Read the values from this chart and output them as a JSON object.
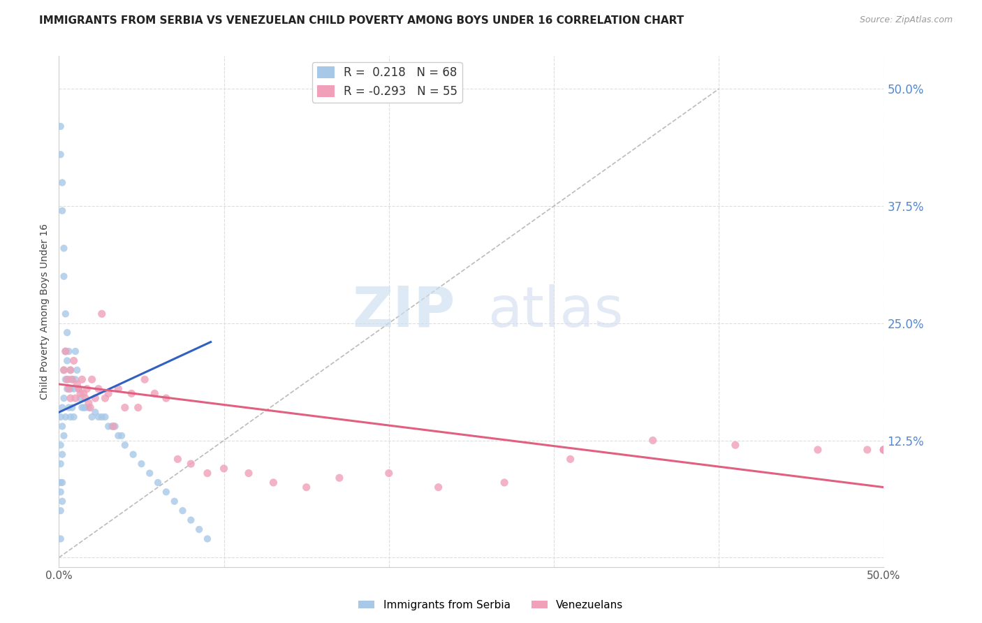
{
  "title": "IMMIGRANTS FROM SERBIA VS VENEZUELAN CHILD POVERTY AMONG BOYS UNDER 16 CORRELATION CHART",
  "source": "Source: ZipAtlas.com",
  "ylabel": "Child Poverty Among Boys Under 16",
  "yticks": [
    0.0,
    0.125,
    0.25,
    0.375,
    0.5
  ],
  "ytick_labels_right": [
    "",
    "12.5%",
    "25.0%",
    "37.5%",
    "50.0%"
  ],
  "xtick_vals": [
    0.0,
    0.5
  ],
  "xtick_labels": [
    "0.0%",
    "50.0%"
  ],
  "xmin": 0.0,
  "xmax": 0.5,
  "ymin": -0.01,
  "ymax": 0.535,
  "legend1_r": "0.218",
  "legend1_n": "68",
  "legend2_r": "-0.293",
  "legend2_n": "55",
  "serbia_color": "#a8c8e8",
  "venezuela_color": "#f0a0b8",
  "serbia_line_color": "#3060c0",
  "venezuela_line_color": "#e06080",
  "diagonal_color": "#bbbbbb",
  "background_color": "#ffffff",
  "grid_color": "#dddddd",
  "serbia_x": [
    0.001,
    0.001,
    0.001,
    0.001,
    0.001,
    0.001,
    0.001,
    0.001,
    0.001,
    0.002,
    0.002,
    0.002,
    0.002,
    0.002,
    0.002,
    0.002,
    0.003,
    0.003,
    0.003,
    0.003,
    0.003,
    0.004,
    0.004,
    0.004,
    0.004,
    0.005,
    0.005,
    0.005,
    0.006,
    0.006,
    0.006,
    0.007,
    0.007,
    0.007,
    0.008,
    0.008,
    0.009,
    0.009,
    0.01,
    0.01,
    0.011,
    0.012,
    0.013,
    0.014,
    0.015,
    0.016,
    0.018,
    0.02,
    0.022,
    0.024,
    0.026,
    0.028,
    0.03,
    0.032,
    0.034,
    0.036,
    0.038,
    0.04,
    0.045,
    0.05,
    0.055,
    0.06,
    0.065,
    0.07,
    0.075,
    0.08,
    0.085,
    0.09
  ],
  "serbia_y": [
    0.46,
    0.43,
    0.15,
    0.12,
    0.1,
    0.08,
    0.07,
    0.05,
    0.02,
    0.4,
    0.37,
    0.16,
    0.14,
    0.11,
    0.08,
    0.06,
    0.33,
    0.3,
    0.2,
    0.17,
    0.13,
    0.26,
    0.22,
    0.19,
    0.15,
    0.24,
    0.21,
    0.18,
    0.22,
    0.19,
    0.16,
    0.2,
    0.18,
    0.15,
    0.19,
    0.16,
    0.18,
    0.15,
    0.22,
    0.19,
    0.2,
    0.18,
    0.17,
    0.16,
    0.16,
    0.16,
    0.16,
    0.15,
    0.155,
    0.15,
    0.15,
    0.15,
    0.14,
    0.14,
    0.14,
    0.13,
    0.13,
    0.12,
    0.11,
    0.1,
    0.09,
    0.08,
    0.07,
    0.06,
    0.05,
    0.04,
    0.03,
    0.02
  ],
  "venezuela_x": [
    0.003,
    0.004,
    0.005,
    0.006,
    0.007,
    0.007,
    0.008,
    0.009,
    0.01,
    0.011,
    0.012,
    0.013,
    0.014,
    0.015,
    0.016,
    0.017,
    0.018,
    0.019,
    0.02,
    0.022,
    0.024,
    0.026,
    0.028,
    0.03,
    0.033,
    0.036,
    0.04,
    0.044,
    0.048,
    0.052,
    0.058,
    0.065,
    0.072,
    0.08,
    0.09,
    0.1,
    0.115,
    0.13,
    0.15,
    0.17,
    0.2,
    0.23,
    0.27,
    0.31,
    0.36,
    0.41,
    0.46,
    0.49,
    0.5,
    0.5,
    0.5,
    0.5,
    0.5,
    0.5,
    0.5
  ],
  "venezuela_y": [
    0.2,
    0.22,
    0.19,
    0.18,
    0.2,
    0.17,
    0.19,
    0.21,
    0.17,
    0.185,
    0.18,
    0.175,
    0.19,
    0.175,
    0.17,
    0.18,
    0.165,
    0.16,
    0.19,
    0.17,
    0.18,
    0.26,
    0.17,
    0.175,
    0.14,
    0.18,
    0.16,
    0.175,
    0.16,
    0.19,
    0.175,
    0.17,
    0.105,
    0.1,
    0.09,
    0.095,
    0.09,
    0.08,
    0.075,
    0.085,
    0.09,
    0.075,
    0.08,
    0.105,
    0.125,
    0.12,
    0.115,
    0.115,
    0.115,
    0.115,
    0.115,
    0.115,
    0.115,
    0.115,
    0.115
  ],
  "serbia_line_x": [
    0.0,
    0.092
  ],
  "serbia_line_y_intercept": 0.155,
  "serbia_line_slope": 0.8,
  "venezuela_line_x": [
    0.0,
    0.5
  ],
  "venezuela_line_y_start": 0.185,
  "venezuela_line_y_end": 0.075
}
